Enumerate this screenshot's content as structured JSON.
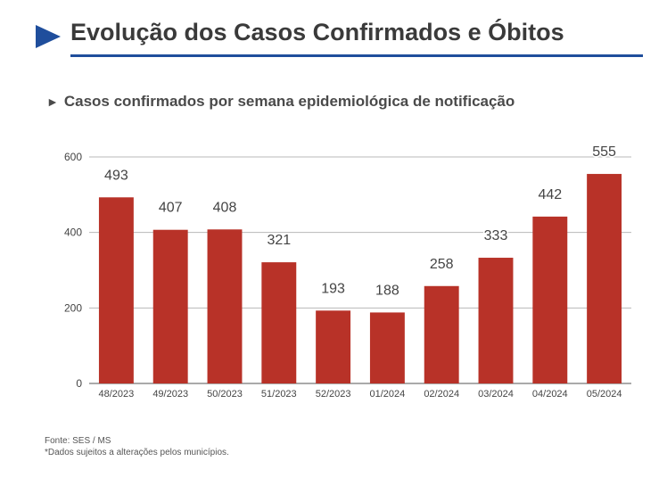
{
  "header": {
    "title": "Evolução dos Casos Confirmados e Óbitos",
    "accent_color": "#1f4e9c"
  },
  "subtitle": {
    "arrow_icon": "triangle-right-icon",
    "text": "Casos confirmados por semana epidemiológica de notificação"
  },
  "chart_data": {
    "type": "bar",
    "title": "Casos confirmados por semana epidemiológica de notificação",
    "categories": [
      "48/2023",
      "49/2023",
      "50/2023",
      "51/2023",
      "52/2023",
      "01/2024",
      "02/2024",
      "03/2024",
      "04/2024",
      "05/2024"
    ],
    "values": [
      493,
      407,
      408,
      321,
      193,
      188,
      258,
      333,
      442,
      555
    ],
    "y_ticks": [
      0,
      200,
      400,
      600
    ],
    "ylim": [
      0,
      600
    ],
    "xlabel": "",
    "ylabel": "",
    "bar_color": "#b83228",
    "grid": true
  },
  "footnotes": {
    "source": "Fonte: SES / MS",
    "disclaimer": "*Dados sujeitos a alterações pelos municípios."
  }
}
